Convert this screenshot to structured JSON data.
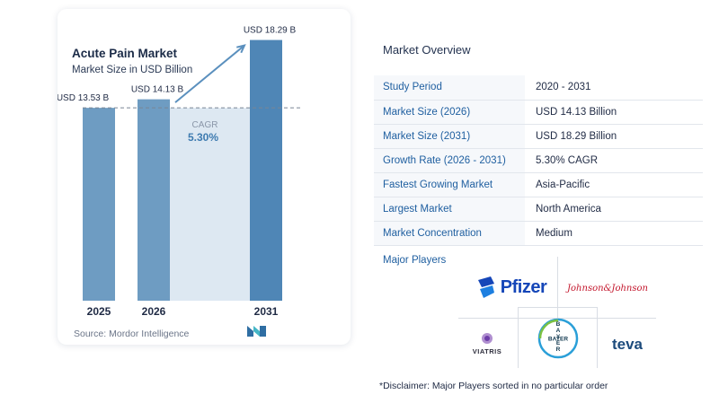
{
  "chart_data": {
    "type": "bar",
    "title": "Acute Pain Market",
    "subtitle": "Market Size in USD Billion",
    "categories": [
      "2025",
      "2026",
      "2031"
    ],
    "values": [
      13.53,
      14.13,
      18.29
    ],
    "data_labels": [
      "USD 13.53 B",
      "USD 14.13 B",
      "USD 18.29 B"
    ],
    "cagr_label": "CAGR",
    "cagr_value": "5.30%",
    "ylim": [
      0,
      20
    ],
    "grid": false,
    "colors": {
      "bar": "#6e9cc2",
      "bar_last": "#4f86b6",
      "shade": "#dde8f2",
      "arrow": "#5b90be",
      "cagr": "#3e7bb0",
      "dash": "#7a8595"
    }
  },
  "source": "Source: Mordor Intelligence",
  "overview": {
    "title": "Market Overview",
    "rows": [
      {
        "label": "Study Period",
        "value": "2020 - 2031"
      },
      {
        "label": "Market Size (2026)",
        "value": "USD 14.13 Billion"
      },
      {
        "label": "Market Size (2031)",
        "value": "USD 18.29 Billion"
      },
      {
        "label": "Growth Rate (2026 - 2031)",
        "value": "5.30% CAGR"
      },
      {
        "label": "Fastest Growing Market",
        "value": "Asia-Pacific"
      },
      {
        "label": "Largest Market",
        "value": "North America"
      },
      {
        "label": "Market Concentration",
        "value": "Medium"
      }
    ]
  },
  "players": {
    "label": "Major Players",
    "brands": {
      "pfizer": "Pfizer",
      "jnj": "Johnson&Johnson",
      "viatris": "VIATRIS",
      "bayer": "BAYER",
      "teva": "teva"
    }
  },
  "disclaimer": "*Disclaimer: Major Players sorted in no particular order"
}
